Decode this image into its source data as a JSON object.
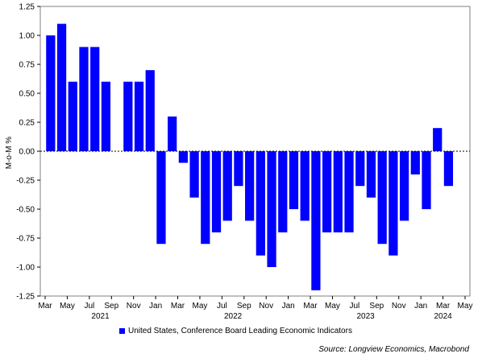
{
  "chart_data": {
    "type": "bar",
    "ylabel": "M-o-M %",
    "ylim": [
      -1.25,
      1.25
    ],
    "yticks": [
      1.25,
      1.0,
      0.75,
      0.5,
      0.25,
      0.0,
      -0.25,
      -0.5,
      -0.75,
      -1.0,
      -1.25
    ],
    "ytick_labels": [
      "1.25",
      "1.00",
      "0.75",
      "0.50",
      "0.25",
      "0.00",
      "-0.25",
      "-0.50",
      "-0.75",
      "-1.00",
      "-1.25"
    ],
    "x_tick_labels": [
      "Mar",
      "May",
      "Jul",
      "Sep",
      "Nov",
      "Jan",
      "Mar",
      "May",
      "Jul",
      "Sep",
      "Nov",
      "Jan",
      "Mar",
      "May",
      "Jul",
      "Sep",
      "Nov",
      "Jan",
      "Mar",
      "May"
    ],
    "x_year_labels": [
      {
        "label": "2021",
        "after_tick": 2.5
      },
      {
        "label": "2022",
        "after_tick": 8.5
      },
      {
        "label": "2023",
        "after_tick": 14.5
      },
      {
        "label": "2024",
        "after_tick": 18
      }
    ],
    "categories": [
      "2021-03",
      "2021-04",
      "2021-05",
      "2021-06",
      "2021-07",
      "2021-08",
      "2021-09",
      "2021-10",
      "2021-11",
      "2021-12",
      "2022-01",
      "2022-02",
      "2022-03",
      "2022-04",
      "2022-05",
      "2022-06",
      "2022-07",
      "2022-08",
      "2022-09",
      "2022-10",
      "2022-11",
      "2022-12",
      "2023-01",
      "2023-02",
      "2023-03",
      "2023-04",
      "2023-05",
      "2023-06",
      "2023-07",
      "2023-08",
      "2023-09",
      "2023-10",
      "2023-11",
      "2023-12",
      "2024-01",
      "2024-02",
      "2024-03"
    ],
    "series": [
      {
        "name": "United States, Conference Board Leading Economic Indicators",
        "color": "#0000ff",
        "values": [
          1.0,
          1.1,
          0.6,
          0.9,
          0.9,
          0.6,
          0.0,
          0.6,
          0.6,
          0.7,
          -0.8,
          0.3,
          -0.1,
          -0.4,
          -0.8,
          -0.7,
          -0.6,
          -0.3,
          -0.6,
          -0.9,
          -1.0,
          -0.7,
          -0.5,
          -0.6,
          -1.2,
          -0.7,
          -0.7,
          -0.7,
          -0.3,
          -0.4,
          -0.8,
          -0.9,
          -0.6,
          -0.2,
          -0.5,
          0.2,
          -0.3
        ]
      }
    ],
    "zero_line": "dotted",
    "grid": false,
    "legend_position": "bottom-center"
  },
  "source_text": "Source: Longview Economics, Macrobond"
}
